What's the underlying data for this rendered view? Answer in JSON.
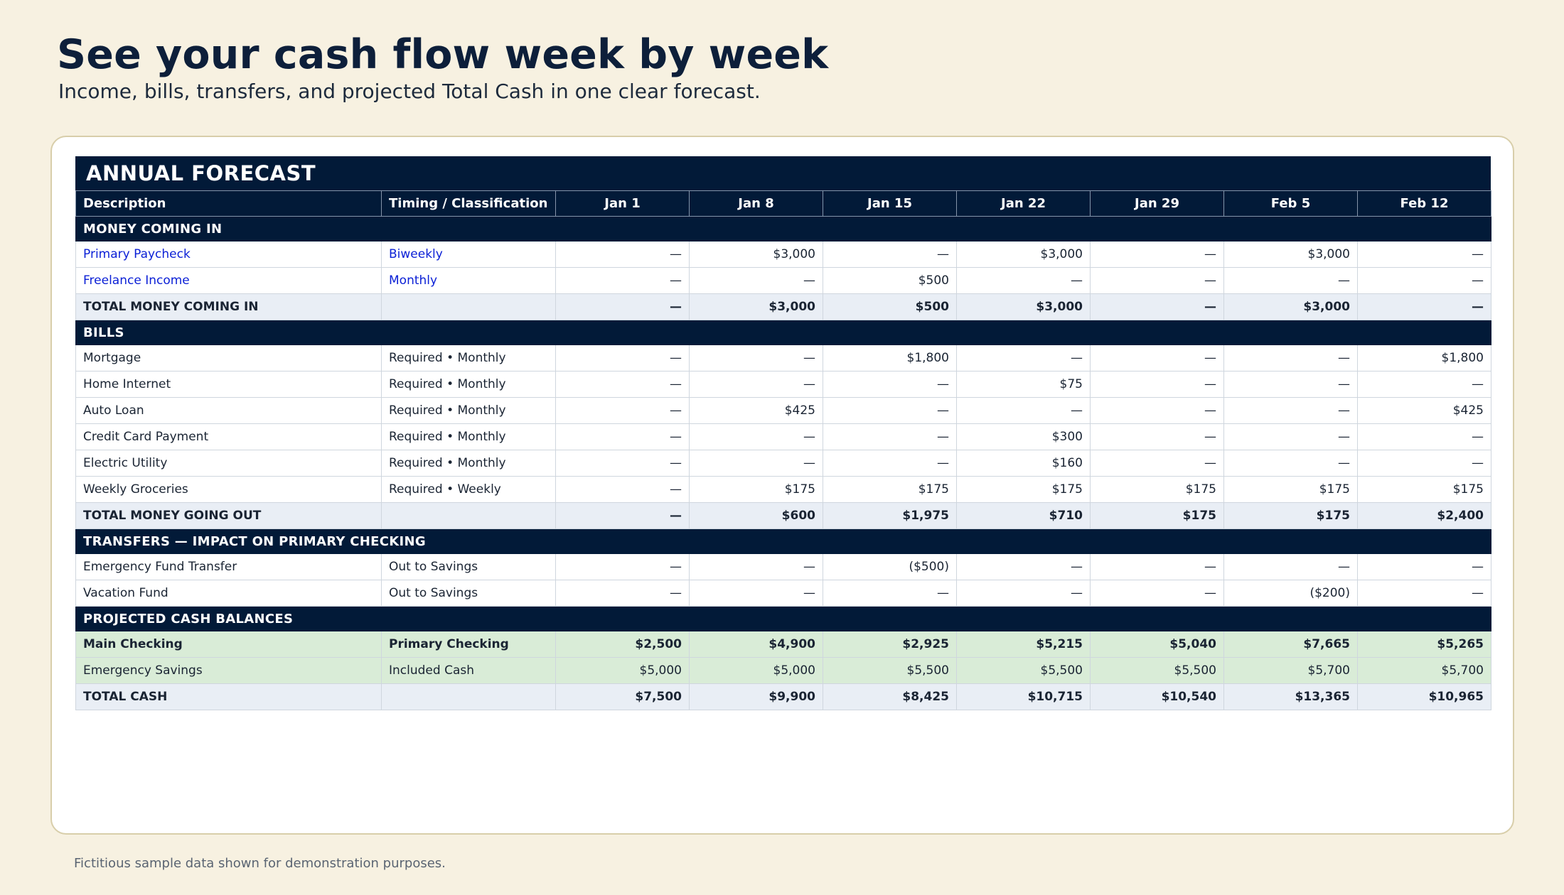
{
  "header": {
    "title": "See your cash flow week by week",
    "subtitle": "Income, bills, transfers, and projected Total Cash in one clear forecast."
  },
  "sheet": {
    "title": "ANNUAL FORECAST",
    "columns": [
      "Description",
      "Timing / Classification",
      "Jan 1",
      "Jan 8",
      "Jan 15",
      "Jan 22",
      "Jan 29",
      "Feb 5",
      "Feb 12"
    ],
    "sections": [
      {
        "label": "MONEY COMING IN",
        "rows": [
          {
            "type": "link",
            "description": "Primary Paycheck",
            "timing": "Biweekly",
            "values": [
              "—",
              "$3,000",
              "—",
              "$3,000",
              "—",
              "$3,000",
              "—"
            ]
          },
          {
            "type": "link",
            "description": "Freelance Income",
            "timing": "Monthly",
            "values": [
              "—",
              "—",
              "$500",
              "—",
              "—",
              "—",
              "—"
            ]
          },
          {
            "type": "total",
            "description": "TOTAL MONEY COMING IN",
            "timing": "",
            "values": [
              "—",
              "$3,000",
              "$500",
              "$3,000",
              "—",
              "$3,000",
              "—"
            ]
          }
        ]
      },
      {
        "label": "BILLS",
        "rows": [
          {
            "type": "plain",
            "description": "Mortgage",
            "timing": "Required • Monthly",
            "values": [
              "—",
              "—",
              "$1,800",
              "—",
              "—",
              "—",
              "$1,800"
            ]
          },
          {
            "type": "plain",
            "description": "Home Internet",
            "timing": "Required • Monthly",
            "values": [
              "—",
              "—",
              "—",
              "$75",
              "—",
              "—",
              "—"
            ]
          },
          {
            "type": "plain",
            "description": "Auto Loan",
            "timing": "Required • Monthly",
            "values": [
              "—",
              "$425",
              "—",
              "—",
              "—",
              "—",
              "$425"
            ]
          },
          {
            "type": "plain",
            "description": "Credit Card Payment",
            "timing": "Required • Monthly",
            "values": [
              "—",
              "—",
              "—",
              "$300",
              "—",
              "—",
              "—"
            ]
          },
          {
            "type": "plain",
            "description": "Electric Utility",
            "timing": "Required • Monthly",
            "values": [
              "—",
              "—",
              "—",
              "$160",
              "—",
              "—",
              "—"
            ]
          },
          {
            "type": "plain",
            "description": "Weekly Groceries",
            "timing": "Required • Weekly",
            "values": [
              "—",
              "$175",
              "$175",
              "$175",
              "$175",
              "$175",
              "$175"
            ]
          },
          {
            "type": "total",
            "description": "TOTAL MONEY GOING OUT",
            "timing": "",
            "values": [
              "—",
              "$600",
              "$1,975",
              "$710",
              "$175",
              "$175",
              "$2,400"
            ]
          }
        ]
      },
      {
        "label": "TRANSFERS — IMPACT ON PRIMARY CHECKING",
        "rows": [
          {
            "type": "plain",
            "description": "Emergency Fund Transfer",
            "timing": "Out to Savings",
            "values": [
              "—",
              "—",
              "($500)",
              "—",
              "—",
              "—",
              "—"
            ]
          },
          {
            "type": "plain",
            "description": "Vacation Fund",
            "timing": "Out to Savings",
            "values": [
              "—",
              "—",
              "—",
              "—",
              "—",
              "($200)",
              "—"
            ]
          }
        ]
      },
      {
        "label": "PROJECTED CASH BALANCES",
        "rows": [
          {
            "type": "bal-strong",
            "description": "Main Checking",
            "timing": "Primary Checking",
            "values": [
              "$2,500",
              "$4,900",
              "$2,925",
              "$5,215",
              "$5,040",
              "$7,665",
              "$5,265"
            ]
          },
          {
            "type": "bal",
            "description": "Emergency Savings",
            "timing": "Included Cash",
            "values": [
              "$5,000",
              "$5,000",
              "$5,500",
              "$5,500",
              "$5,500",
              "$5,700",
              "$5,700"
            ]
          },
          {
            "type": "grand",
            "description": "TOTAL CASH",
            "timing": "",
            "values": [
              "$7,500",
              "$9,900",
              "$8,425",
              "$10,715",
              "$10,540",
              "$13,365",
              "$10,965"
            ]
          }
        ]
      }
    ]
  },
  "footer": {
    "note": "Fictitious sample data shown for demonstration purposes."
  }
}
